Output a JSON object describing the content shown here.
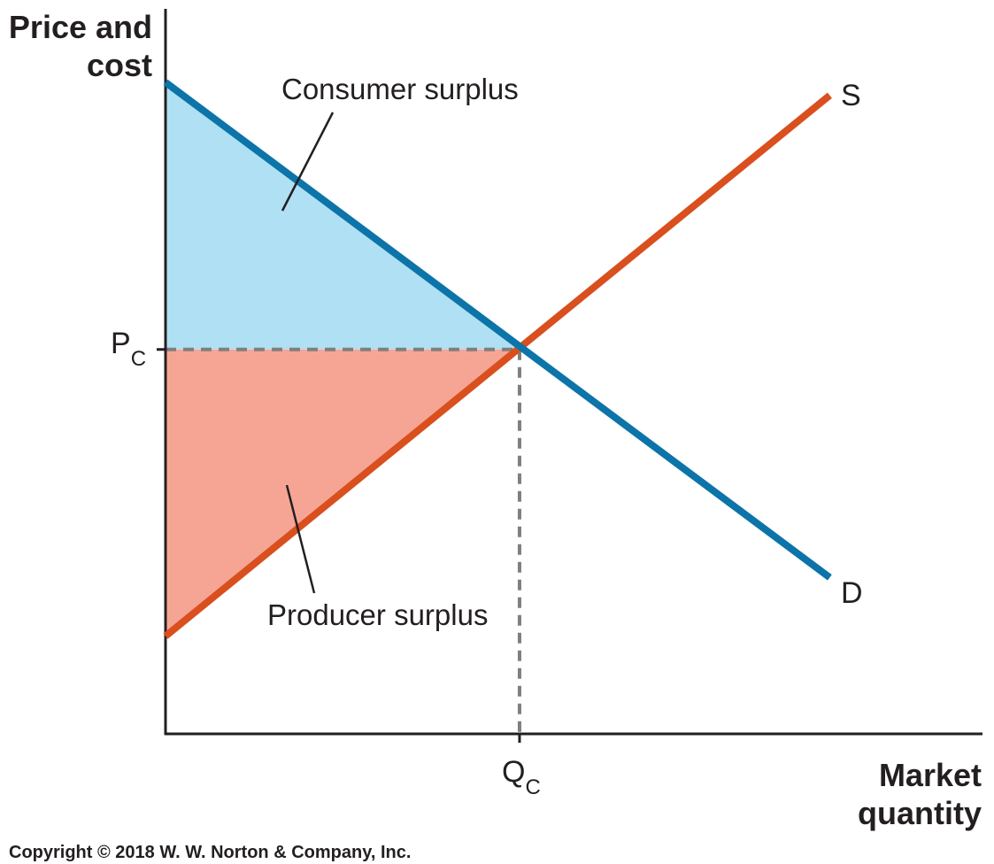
{
  "chart_data": {
    "type": "line",
    "ylabel_lines": [
      "Price and",
      "cost"
    ],
    "xlabel_lines": [
      "Market",
      "quantity"
    ],
    "series": [
      {
        "name": "D",
        "color": "#0c74a8",
        "points": [
          [
            0,
            1.0
          ],
          [
            10,
            0.24
          ]
        ]
      },
      {
        "name": "S",
        "color": "#d94f1e",
        "points": [
          [
            0,
            0.15
          ],
          [
            10,
            0.98
          ]
        ]
      }
    ],
    "equilibrium": {
      "x": 5.33,
      "y": 0.59
    },
    "x_ticks": [
      {
        "value": 5.33,
        "main": "Q",
        "sub": "C"
      }
    ],
    "y_ticks": [
      {
        "value": 0.59,
        "main": "P",
        "sub": "C"
      }
    ],
    "regions": [
      {
        "name": "Consumer surplus",
        "color": "#afe0f3"
      },
      {
        "name": "Producer surplus",
        "color": "#f6a594"
      }
    ],
    "xlim": [
      0,
      12.3
    ],
    "ylim": [
      0,
      1.0
    ],
    "grid": false
  },
  "footer": {
    "copyright": "Copyright © 2018 W. W. Norton & Company, Inc."
  }
}
